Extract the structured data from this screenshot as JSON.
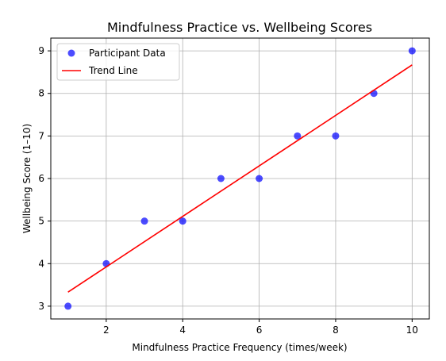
{
  "chart_data": {
    "type": "scatter",
    "title": "Mindfulness Practice vs. Wellbeing Scores",
    "xlabel": "Mindfulness Practice Frequency (times/week)",
    "ylabel": "Wellbeing Score (1–10)",
    "xlim": [
      0.55,
      10.45
    ],
    "ylim": [
      2.7,
      9.3
    ],
    "xticks": [
      2,
      4,
      6,
      8,
      10
    ],
    "yticks": [
      3,
      4,
      5,
      6,
      7,
      8,
      9
    ],
    "grid": true,
    "legend_position": "top-left",
    "series": [
      {
        "name": "Participant Data",
        "kind": "scatter",
        "color": "#0000ff",
        "x": [
          1,
          2,
          3,
          4,
          5,
          6,
          7,
          8,
          9,
          10
        ],
        "y": [
          3,
          4,
          5,
          5,
          6,
          6,
          7,
          7,
          8,
          9
        ]
      },
      {
        "name": "Trend Line",
        "kind": "line",
        "color": "#ff0000",
        "x": [
          1,
          10
        ],
        "y": [
          3.33,
          8.67
        ]
      }
    ]
  }
}
